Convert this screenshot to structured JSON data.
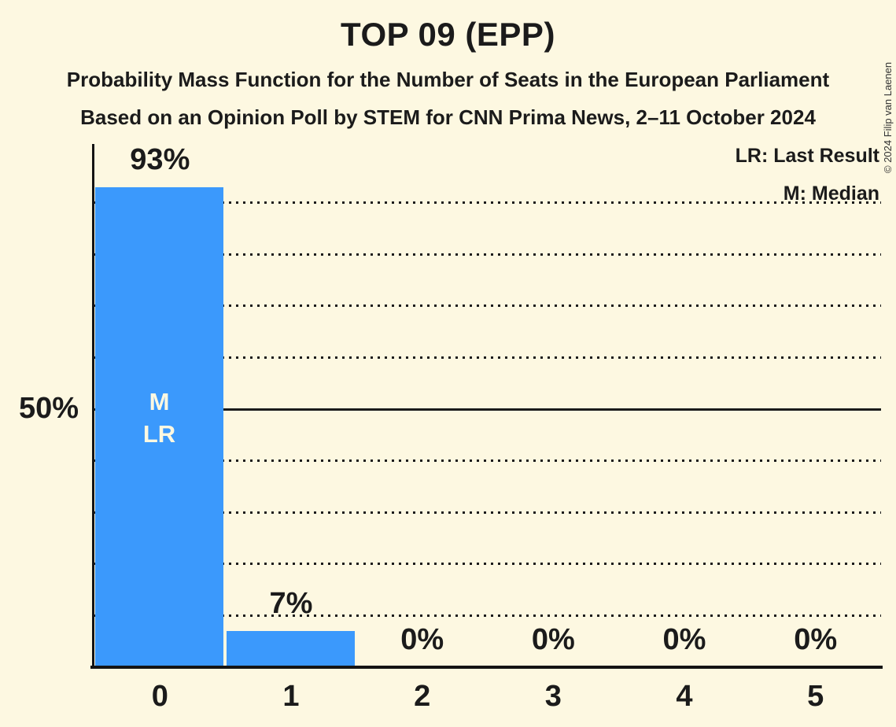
{
  "header": {
    "title": "TOP 09 (EPP)",
    "subtitle_line1": "Probability Mass Function for the Number of Seats in the European Parliament",
    "subtitle_line2": "Based on an Opinion Poll by STEM for CNN Prima News, 2–11 October 2024"
  },
  "legend": {
    "lr_label": "LR: Last Result",
    "m_label": "M: Median"
  },
  "copyright": "© 2024 Filip van Laenen",
  "colors": {
    "background": "#FDF8E1",
    "bar": "#3B99FC",
    "text": "#1B1B1B",
    "bar_inner_text": "#FDF8E1",
    "axis": "#141414"
  },
  "y_axis": {
    "shown_tick_label": "50%"
  },
  "chart_data": {
    "type": "bar",
    "title": "TOP 09 (EPP)",
    "categories": [
      "0",
      "1",
      "2",
      "3",
      "4",
      "5"
    ],
    "values": [
      93,
      7,
      0,
      0,
      0,
      0
    ],
    "value_labels": [
      "93%",
      "7%",
      "0%",
      "0%",
      "0%",
      "0%"
    ],
    "xlabel": "",
    "ylabel": "",
    "ylim": [
      0,
      100
    ],
    "gridlines_pct": [
      10,
      20,
      30,
      40,
      50,
      60,
      70,
      80,
      90
    ],
    "solid_gridline_pct": 50,
    "grid_style": "horizontal dotted, solid line at 50%",
    "legend_entries": [
      "LR: Last Result",
      "M: Median"
    ],
    "legend_position": "top-right",
    "annotations": {
      "median_bar": "0",
      "last_result_bar": "0",
      "inside_bar_labels": [
        "M",
        "LR"
      ]
    }
  }
}
